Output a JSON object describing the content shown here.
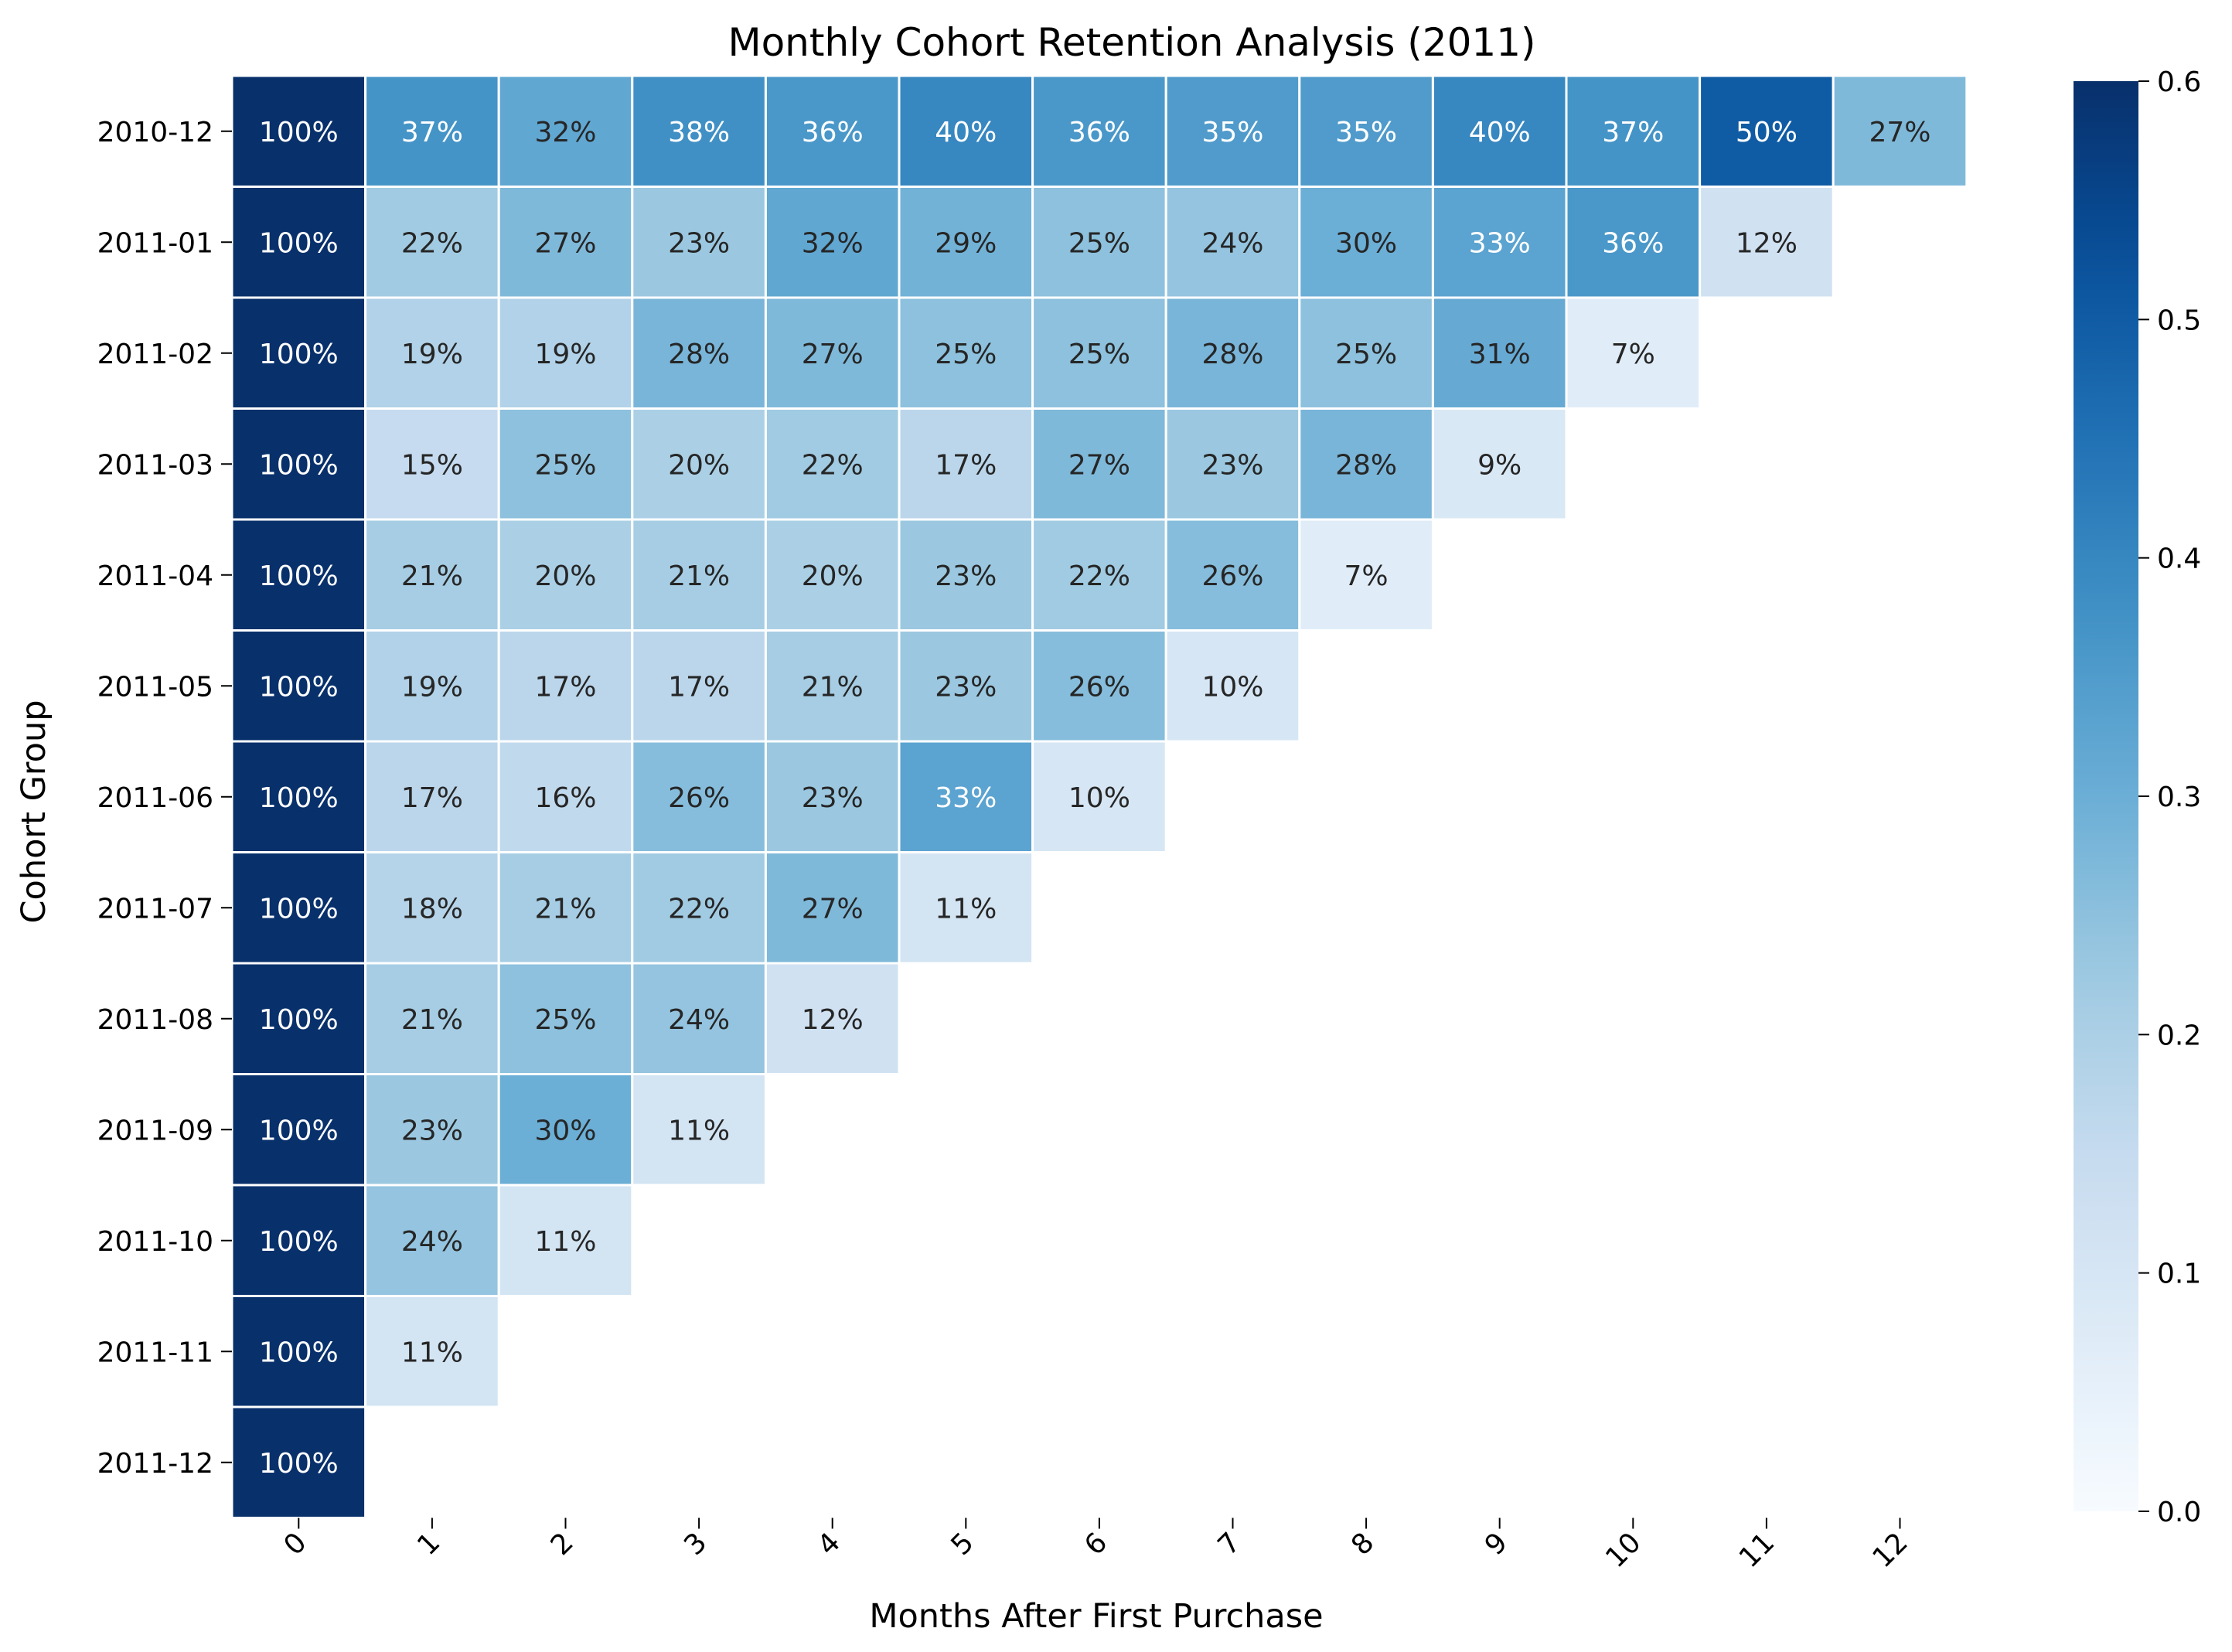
{
  "chart_data": {
    "type": "heatmap",
    "title": "Monthly Cohort Retention Analysis (2011)",
    "xlabel": "Months After First Purchase",
    "ylabel": "Cohort Group",
    "x_categories": [
      "0",
      "1",
      "2",
      "3",
      "4",
      "5",
      "6",
      "7",
      "8",
      "9",
      "10",
      "11",
      "12"
    ],
    "y_categories": [
      "2010-12",
      "2011-01",
      "2011-02",
      "2011-03",
      "2011-04",
      "2011-05",
      "2011-06",
      "2011-07",
      "2011-08",
      "2011-09",
      "2011-10",
      "2011-11",
      "2011-12"
    ],
    "values": [
      [
        1.0,
        0.37,
        0.32,
        0.38,
        0.36,
        0.4,
        0.36,
        0.35,
        0.35,
        0.4,
        0.37,
        0.5,
        0.27
      ],
      [
        1.0,
        0.22,
        0.27,
        0.23,
        0.32,
        0.29,
        0.25,
        0.24,
        0.3,
        0.33,
        0.36,
        0.12
      ],
      [
        1.0,
        0.19,
        0.19,
        0.28,
        0.27,
        0.25,
        0.25,
        0.28,
        0.25,
        0.31,
        0.07
      ],
      [
        1.0,
        0.15,
        0.25,
        0.2,
        0.22,
        0.17,
        0.27,
        0.23,
        0.28,
        0.09
      ],
      [
        1.0,
        0.21,
        0.2,
        0.21,
        0.2,
        0.23,
        0.22,
        0.26,
        0.07
      ],
      [
        1.0,
        0.19,
        0.17,
        0.17,
        0.21,
        0.23,
        0.26,
        0.1
      ],
      [
        1.0,
        0.17,
        0.16,
        0.26,
        0.23,
        0.33,
        0.1
      ],
      [
        1.0,
        0.18,
        0.21,
        0.22,
        0.27,
        0.11
      ],
      [
        1.0,
        0.21,
        0.25,
        0.24,
        0.12
      ],
      [
        1.0,
        0.23,
        0.3,
        0.11
      ],
      [
        1.0,
        0.24,
        0.11
      ],
      [
        1.0,
        0.11
      ],
      [
        1.0
      ]
    ],
    "labels": [
      [
        "100%",
        "37%",
        "32%",
        "38%",
        "36%",
        "40%",
        "36%",
        "35%",
        "35%",
        "40%",
        "37%",
        "50%",
        "27%"
      ],
      [
        "100%",
        "22%",
        "27%",
        "23%",
        "32%",
        "29%",
        "25%",
        "24%",
        "30%",
        "33%",
        "36%",
        "12%"
      ],
      [
        "100%",
        "19%",
        "19%",
        "28%",
        "27%",
        "25%",
        "25%",
        "28%",
        "25%",
        "31%",
        "7%"
      ],
      [
        "100%",
        "15%",
        "25%",
        "20%",
        "22%",
        "17%",
        "27%",
        "23%",
        "28%",
        "9%"
      ],
      [
        "100%",
        "21%",
        "20%",
        "21%",
        "20%",
        "23%",
        "22%",
        "26%",
        "7%"
      ],
      [
        "100%",
        "19%",
        "17%",
        "17%",
        "21%",
        "23%",
        "26%",
        "10%"
      ],
      [
        "100%",
        "17%",
        "16%",
        "26%",
        "23%",
        "33%",
        "10%"
      ],
      [
        "100%",
        "18%",
        "21%",
        "22%",
        "27%",
        "11%"
      ],
      [
        "100%",
        "21%",
        "25%",
        "24%",
        "12%"
      ],
      [
        "100%",
        "23%",
        "30%",
        "11%"
      ],
      [
        "100%",
        "24%",
        "11%"
      ],
      [
        "100%",
        "11%"
      ],
      [
        "100%"
      ]
    ],
    "color_range": [
      0.0,
      0.6
    ],
    "colormap": "Blues",
    "colorbar_ticks": [
      "0.0",
      "0.1",
      "0.2",
      "0.3",
      "0.4",
      "0.5",
      "0.6"
    ],
    "grid": false
  }
}
